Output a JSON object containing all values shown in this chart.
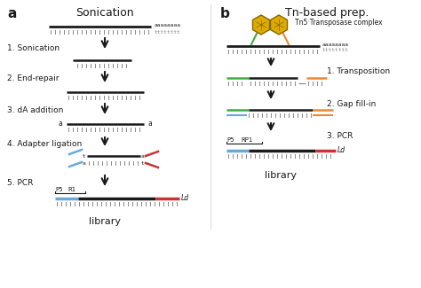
{
  "bg_color": "#ffffff",
  "title_a": "Sonication",
  "title_b": "Tn-based prep.",
  "label_a": "a",
  "label_b": "b",
  "steps_a": [
    "1. Sonication",
    "2. End-repair",
    "3. dA addition",
    "4. Adapter ligation",
    "5. PCR"
  ],
  "steps_b": [
    "1. Transposition",
    "2. Gap fill-in",
    "3. PCR"
  ],
  "text_tn5": "Tn5 Transposase complex",
  "text_library": "library",
  "text_Ld": "Ld",
  "text_P5": "P5",
  "text_R1": "R1",
  "text_RP1": "RP1",
  "colors": {
    "black": "#1a1a1a",
    "gray": "#888888",
    "blue": "#4488cc",
    "red": "#cc3333",
    "green": "#44aa44",
    "orange": "#ee8833",
    "light_blue": "#66aadd",
    "dark_gray": "#555555",
    "yellow": "#ddaa00"
  }
}
